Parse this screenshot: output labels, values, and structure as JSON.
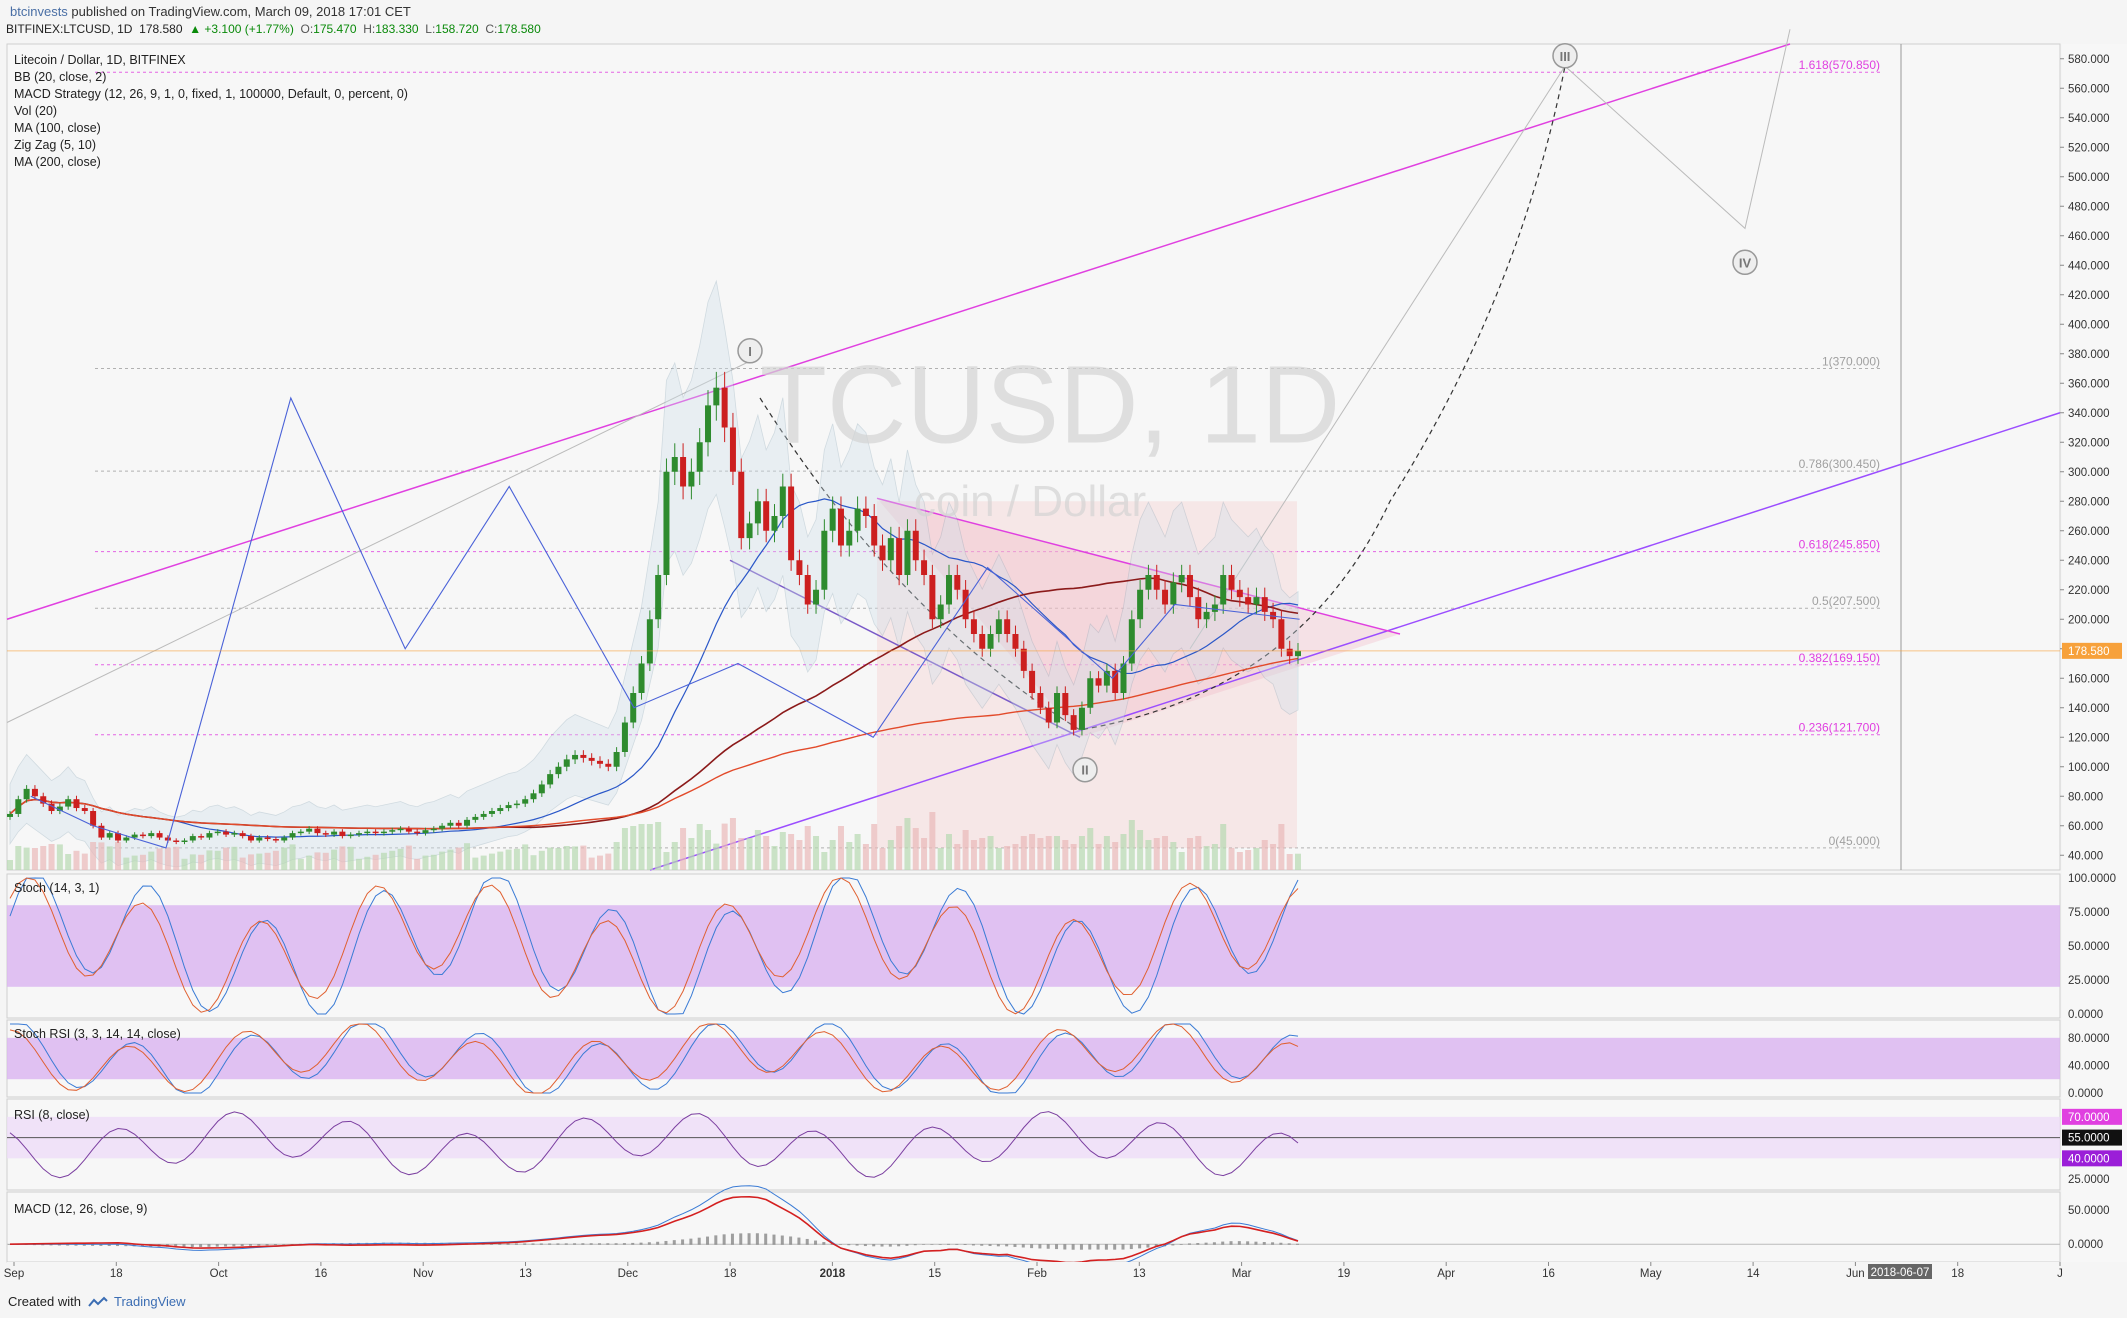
{
  "header": {
    "author": "btcinvests",
    "published": " published on TradingView.com, March 09, 2018 17:01 CET",
    "symbol": "BITFINEX:LTCUSD, 1D",
    "last": "178.580",
    "change": "▲ +3.100 (+1.77%)",
    "o_label": "O:",
    "o_val": "175.470",
    "h_label": "H:",
    "h_val": "183.330",
    "l_label": "L:",
    "l_val": "158.720",
    "c_label": "C:",
    "c_val": "178.580"
  },
  "legend": [
    "Litecoin / Dollar, 1D, BITFINEX",
    "BB (20, close, 2)",
    "MACD Strategy (12, 26, 9, 1, 0, fixed, 1, 100000, Default, 0, percent, 0)",
    "Vol (20)",
    "MA (100, close)",
    "Zig Zag (5, 10)",
    "MA (200, close)"
  ],
  "watermark": {
    "symbol": "TCUSD, 1D",
    "name": "coin / Dollar"
  },
  "wave_labels": [
    "I",
    "II",
    "III",
    "IV"
  ],
  "panes": {
    "stoch": {
      "label": "Stoch (14, 3, 1)",
      "ticks": [
        "100.0000",
        "75.0000",
        "50.0000",
        "25.0000",
        "0.0000"
      ]
    },
    "stochrsi": {
      "label": "Stoch RSI (3, 3, 14, 14, close)",
      "ticks": [
        "80.0000",
        "40.0000",
        "0.0000"
      ]
    },
    "rsi": {
      "label": "RSI (8, close)",
      "ticks": [
        "70.0000",
        "55.0000",
        "40.0000",
        "25.0000"
      ]
    },
    "macd": {
      "label": "MACD (12, 26, close, 9)",
      "ticks": [
        "50.0000",
        "0.0000"
      ]
    }
  },
  "footer": {
    "created": "Created with",
    "brand": "TradingView"
  },
  "colors": {
    "up": "#2e8b2e",
    "down": "#cc1f1f",
    "fib": "#e040e0",
    "fib_gray": "#b0b0b0",
    "osc_band": "#d9b3f0",
    "price_tag": "#f7a13b",
    "trend": "#e040e0",
    "purple": "#9b4dff"
  },
  "chart_data": {
    "type": "candlestick",
    "title": "Litecoin / Dollar, 1D, BITFINEX",
    "y_axis": {
      "ylim": [
        30,
        590
      ],
      "ticks": [
        "580.000",
        "560.000",
        "540.000",
        "520.000",
        "500.000",
        "480.000",
        "460.000",
        "440.000",
        "420.000",
        "400.000",
        "380.000",
        "360.000",
        "340.000",
        "320.000",
        "300.000",
        "280.000",
        "260.000",
        "240.000",
        "220.000",
        "200.000",
        "180.000",
        "160.000",
        "140.000",
        "120.000",
        "100.000",
        "80.000",
        "60.000",
        "40.000"
      ]
    },
    "x_axis": {
      "ticks": [
        "Sep",
        "18",
        "Oct",
        "16",
        "Nov",
        "13",
        "Dec",
        "18",
        "2018",
        "15",
        "Feb",
        "13",
        "Mar",
        "19",
        "Apr",
        "16",
        "May",
        "14",
        "Jun",
        "18",
        "J"
      ],
      "highlight": "2018-06-07"
    },
    "fib_levels": [
      {
        "label": "1.618(570.850)",
        "value": 570.85,
        "color": "#e040e0"
      },
      {
        "label": "1(370.000)",
        "value": 370.0,
        "color": "#a0a0a0"
      },
      {
        "label": "0.786(300.450)",
        "value": 300.45,
        "color": "#a0a0a0"
      },
      {
        "label": "0.618(245.850)",
        "value": 245.85,
        "color": "#e040e0"
      },
      {
        "label": "0.5(207.500)",
        "value": 207.5,
        "color": "#a0a0a0"
      },
      {
        "label": "0.382(169.150)",
        "value": 169.15,
        "color": "#e040e0"
      },
      {
        "label": "0.236(121.700)",
        "value": 121.7,
        "color": "#e040e0"
      },
      {
        "label": "0(45.000)",
        "value": 45.0,
        "color": "#a0a0a0"
      }
    ],
    "last_price": "178.580",
    "closes": [
      68,
      78,
      85,
      80,
      75,
      70,
      73,
      78,
      72,
      70,
      60,
      52,
      55,
      50,
      52,
      54,
      53,
      55,
      52,
      50,
      49,
      50,
      53,
      52,
      55,
      56,
      54,
      55,
      53,
      50,
      52,
      51,
      50,
      52,
      55,
      56,
      58,
      55,
      54,
      56,
      53,
      54,
      55,
      56,
      55,
      56,
      57,
      58,
      56,
      55,
      57,
      58,
      60,
      62,
      60,
      64,
      66,
      68,
      70,
      72,
      74,
      75,
      78,
      82,
      88,
      95,
      100,
      105,
      108,
      106,
      104,
      102,
      100,
      110,
      130,
      150,
      170,
      200,
      230,
      300,
      310,
      290,
      300,
      320,
      345,
      357,
      330,
      300,
      255,
      265,
      280,
      260,
      270,
      290,
      240,
      230,
      210,
      220,
      260,
      275,
      250,
      260,
      275,
      270,
      250,
      240,
      255,
      230,
      260,
      240,
      230,
      200,
      210,
      230,
      220,
      200,
      190,
      180,
      190,
      200,
      190,
      180,
      165,
      150,
      140,
      130,
      150,
      135,
      125,
      140,
      160,
      155,
      165,
      150,
      170,
      200,
      220,
      230,
      220,
      210,
      225,
      230,
      215,
      200,
      205,
      210,
      230,
      220,
      215,
      210,
      215,
      205,
      200,
      180,
      175,
      178.58
    ],
    "oscillators": {
      "stoch_range": [
        0,
        100
      ],
      "stochrsi_range": [
        0,
        100
      ],
      "rsi_range": [
        20,
        80
      ],
      "macd_range": [
        -20,
        70
      ]
    }
  }
}
